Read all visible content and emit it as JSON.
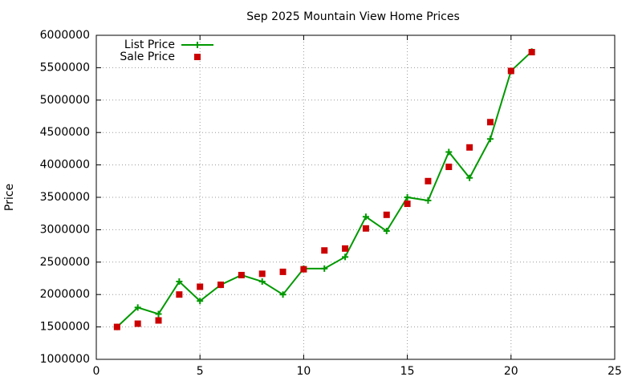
{
  "chart_data": {
    "type": "line",
    "title": "Sep 2025 Mountain View Home Prices",
    "y_label": "Price",
    "x": [
      1,
      2,
      3,
      4,
      5,
      6,
      7,
      8,
      9,
      10,
      11,
      12,
      13,
      14,
      15,
      16,
      17,
      18,
      19,
      20,
      21
    ],
    "series": [
      {
        "name": "List Price",
        "color": "#009900",
        "style": "linespoints",
        "values": [
          1500000,
          1800000,
          1700000,
          2200000,
          1900000,
          2150000,
          2300000,
          2200000,
          2000000,
          2400000,
          2400000,
          2580000,
          3200000,
          2980000,
          3500000,
          3450000,
          4200000,
          3800000,
          4400000,
          5450000,
          5750000
        ]
      },
      {
        "name": "Sale Price",
        "color": "#cc0000",
        "style": "points",
        "values": [
          1500000,
          1550000,
          1600000,
          2000000,
          2120000,
          2150000,
          2300000,
          2320000,
          2350000,
          2390000,
          2680000,
          2710000,
          3020000,
          3230000,
          3400000,
          3750000,
          3970000,
          4270000,
          4660000,
          5450000,
          5740000
        ]
      }
    ],
    "xlim": [
      0,
      25
    ],
    "xticks": [
      0,
      5,
      10,
      15,
      20,
      25
    ],
    "ylim": [
      1000000,
      6000000
    ],
    "yticks": [
      1000000,
      1500000,
      2000000,
      2500000,
      3000000,
      3500000,
      4000000,
      4500000,
      5000000,
      5500000,
      6000000
    ],
    "grid": true,
    "legend": "top-left"
  }
}
